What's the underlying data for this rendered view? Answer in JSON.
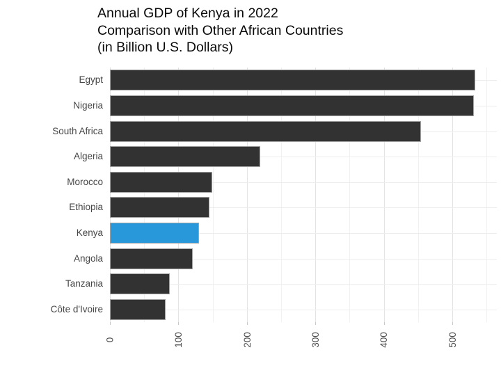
{
  "chart_data": {
    "type": "bar",
    "orientation": "horizontal",
    "title": "Annual GDP of Kenya in 2022 Comparison with Other African Countries (in Billion U.S. Dollars)",
    "title_lines": [
      "Annual GDP of Kenya in 2022",
      "Comparison with Other African Countries",
      "(in Billion U.S. Dollars)"
    ],
    "unit": "Billion U.S. Dollars",
    "categories": [
      "Egypt",
      "Nigeria",
      "South Africa",
      "Algeria",
      "Morocco",
      "Ethiopia",
      "Kenya",
      "Angola",
      "Tanzania",
      "Côte d'Ivoire"
    ],
    "values": [
      534,
      531,
      454,
      220,
      149,
      145,
      130,
      121,
      87,
      81
    ],
    "highlight_category": "Kenya",
    "xlabel": "",
    "ylabel": "",
    "xlim": [
      0,
      565
    ],
    "x_major_ticks": [
      0,
      100,
      200,
      300,
      400,
      500
    ],
    "x_minor_ticks": [
      50,
      150,
      250,
      350,
      450,
      550
    ],
    "grid": "on",
    "legend": "none",
    "colors": {
      "bar": "#323232",
      "highlight": "#2898db",
      "bar_border": "#a3a3a3",
      "grid_major": "#e4e4e4",
      "grid_minor": "#f1f1f1",
      "tick_mark": "#c8c8c8",
      "axis_text": "#4d4d4d",
      "category_text": "#454545",
      "title_text": "#0a0a0a",
      "background": "#ffffff"
    }
  }
}
